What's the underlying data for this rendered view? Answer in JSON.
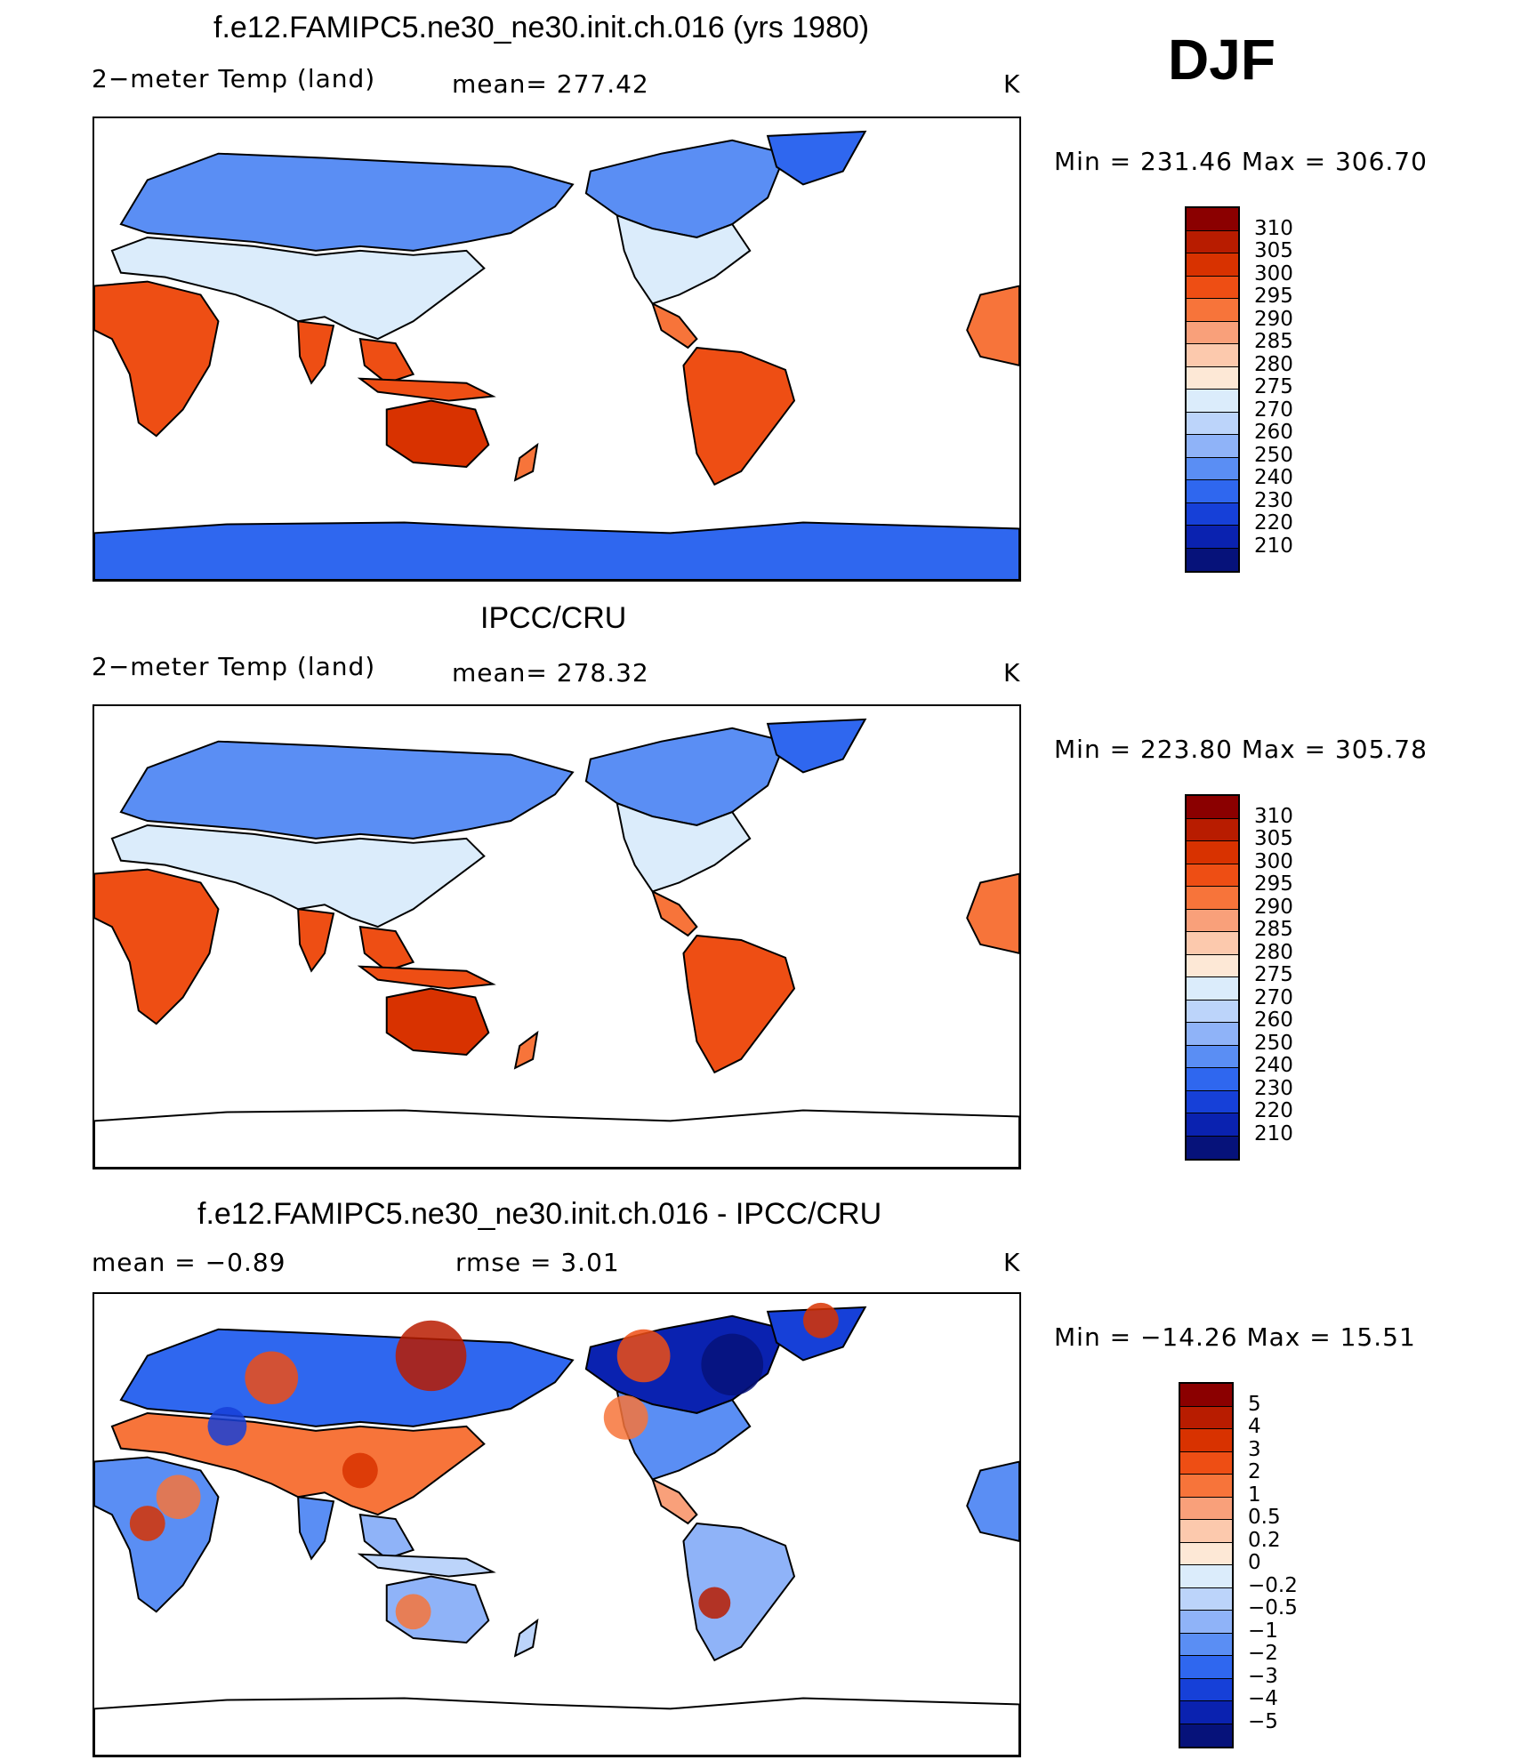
{
  "season": "DJF",
  "panels": [
    {
      "title": "f.e12.FAMIPC5.ne30_ne30.init.ch.016 (yrs 1980)",
      "left_label": "2−meter Temp (land)",
      "center_label": "mean=  277.42",
      "units": "K",
      "minmax": "Min  =  231.46  Max  =  306.70",
      "palette": "abs"
    },
    {
      "title": "IPCC/CRU",
      "left_label": "2−meter Temp (land)",
      "center_label": "mean=  278.32",
      "units": "K",
      "minmax": "Min  =  223.80  Max  =  305.78",
      "palette": "abs"
    },
    {
      "title": "f.e12.FAMIPC5.ne30_ne30.init.ch.016 - IPCC/CRU",
      "left_label": "mean  =    −0.89",
      "center_label": "rmse  =      3.01",
      "units": "K",
      "minmax": "Min  =  −14.26  Max  =    15.51",
      "palette": "diff"
    }
  ],
  "colorbars": {
    "abs": {
      "labels": [
        "310",
        "305",
        "300",
        "295",
        "290",
        "285",
        "280",
        "275",
        "270",
        "260",
        "250",
        "240",
        "230",
        "220",
        "210"
      ],
      "colors": [
        "#8b0000",
        "#b81c00",
        "#d83200",
        "#ee4e14",
        "#f7743a",
        "#f9a07a",
        "#fcc9ad",
        "#fde8d6",
        "#dbecfb",
        "#bcd4fa",
        "#8fb3f8",
        "#5a8ef4",
        "#2f67ef",
        "#1640d8",
        "#0a22b0",
        "#06127a"
      ]
    },
    "diff": {
      "labels": [
        "5",
        "4",
        "3",
        "2",
        "1",
        "0.5",
        "0.2",
        "0",
        "−0.2",
        "−0.5",
        "−1",
        "−2",
        "−3",
        "−4",
        "−5"
      ],
      "colors": [
        "#8b0000",
        "#b81c00",
        "#d83200",
        "#ee4e14",
        "#f7743a",
        "#f9a07a",
        "#fcc9ad",
        "#fde8d6",
        "#dbecfb",
        "#bcd4fa",
        "#8fb3f8",
        "#5a8ef4",
        "#2f67ef",
        "#1640d8",
        "#0a22b0",
        "#06127a"
      ]
    }
  }
}
